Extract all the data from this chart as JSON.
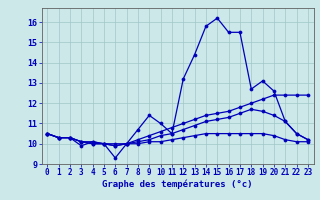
{
  "title": "Graphe des températures (°c)",
  "background_color": "#cce8e8",
  "grid_color": "#a0c8c8",
  "line_color": "#0000bb",
  "xlim": [
    -0.5,
    23.5
  ],
  "ylim": [
    9,
    16.7
  ],
  "xticks": [
    0,
    1,
    2,
    3,
    4,
    5,
    6,
    7,
    8,
    9,
    10,
    11,
    12,
    13,
    14,
    15,
    16,
    17,
    18,
    19,
    20,
    21,
    22,
    23
  ],
  "yticks": [
    9,
    10,
    11,
    12,
    13,
    14,
    15,
    16
  ],
  "series": [
    [
      10.5,
      10.3,
      10.3,
      9.9,
      10.1,
      10.0,
      9.3,
      10.0,
      10.7,
      11.4,
      11.0,
      10.5,
      13.2,
      14.4,
      15.8,
      16.2,
      15.5,
      15.5,
      12.7,
      13.1,
      12.6,
      11.1,
      10.5,
      10.2
    ],
    [
      10.5,
      10.3,
      10.3,
      10.1,
      10.1,
      10.0,
      10.0,
      10.0,
      10.2,
      10.4,
      10.6,
      10.8,
      11.0,
      11.2,
      11.4,
      11.5,
      11.6,
      11.8,
      12.0,
      12.2,
      12.4,
      12.4,
      12.4,
      12.4
    ],
    [
      10.5,
      10.3,
      10.3,
      10.1,
      10.0,
      10.0,
      9.9,
      10.0,
      10.1,
      10.2,
      10.4,
      10.5,
      10.7,
      10.9,
      11.1,
      11.2,
      11.3,
      11.5,
      11.7,
      11.6,
      11.4,
      11.1,
      10.5,
      10.2
    ],
    [
      10.5,
      10.3,
      10.3,
      10.1,
      10.0,
      10.0,
      9.9,
      10.0,
      10.0,
      10.1,
      10.1,
      10.2,
      10.3,
      10.4,
      10.5,
      10.5,
      10.5,
      10.5,
      10.5,
      10.5,
      10.4,
      10.2,
      10.1,
      10.1
    ]
  ],
  "xlabel_fontsize": 6.5,
  "tick_fontsize": 5.5,
  "linewidth": 0.9,
  "markersize": 2.2
}
